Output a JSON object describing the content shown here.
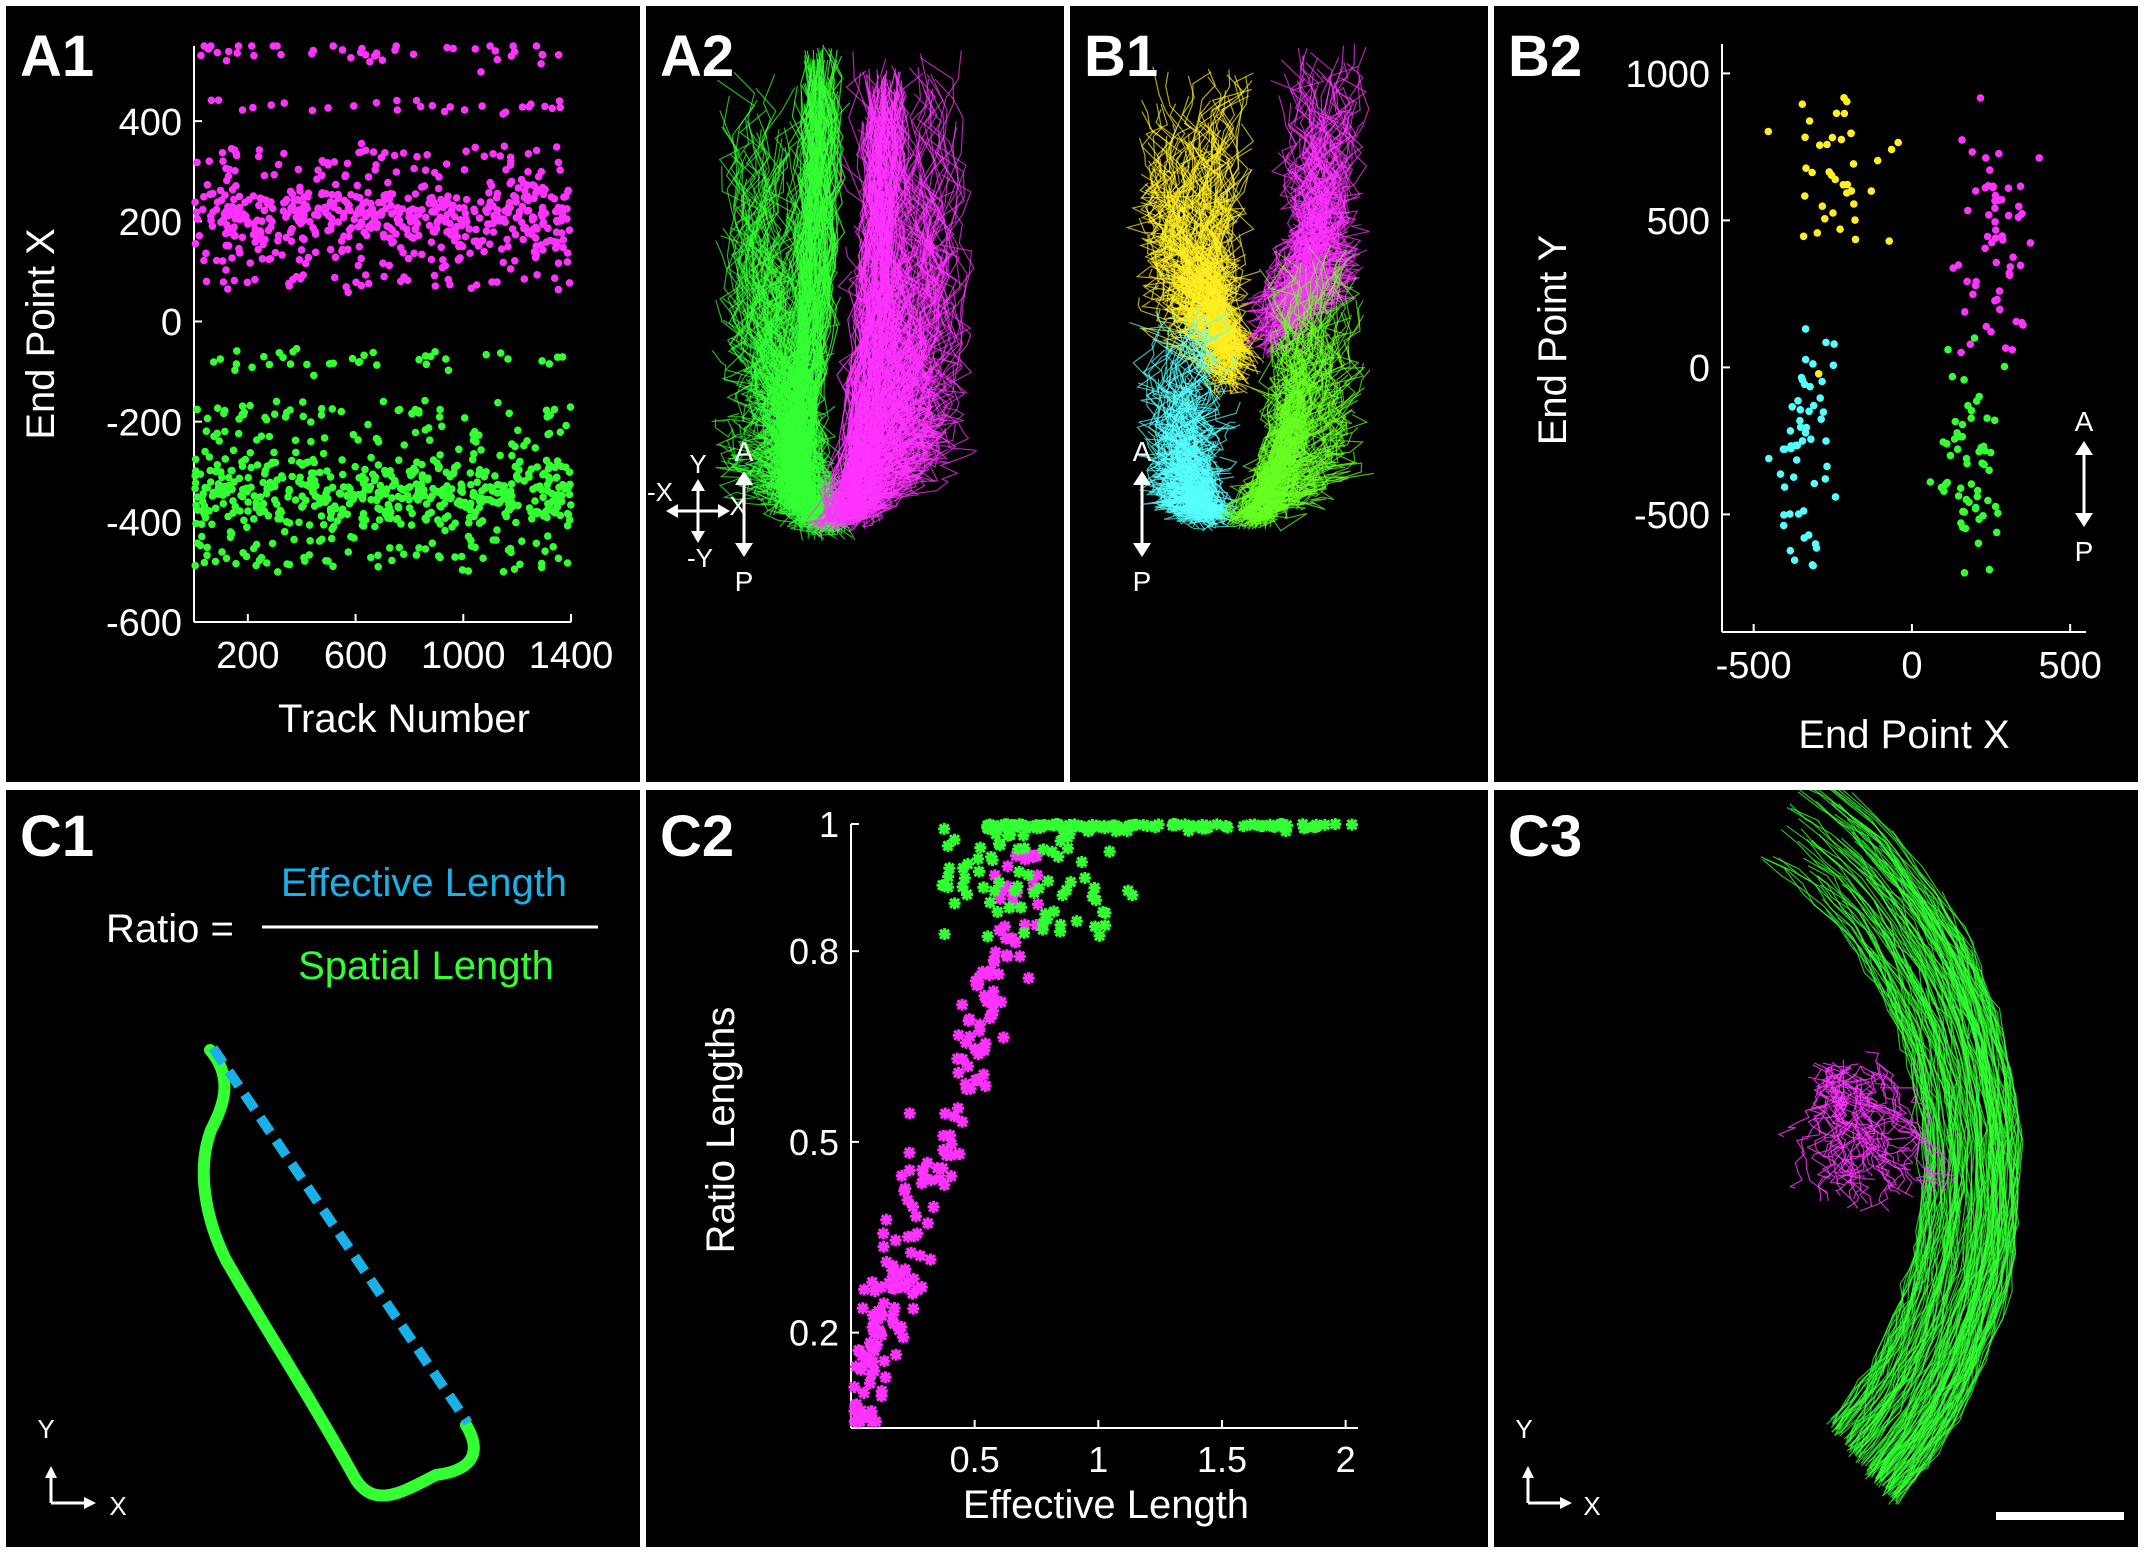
{
  "colors": {
    "magenta": "#ff33ff",
    "green": "#33ff33",
    "yellow": "#ffee22",
    "cyan": "#55ffff",
    "blue": "#1ab0e8",
    "white": "#ffffff",
    "background": "#000000"
  },
  "panels": {
    "a1": "A1",
    "a2": "A2",
    "b1": "B1",
    "b2": "B2",
    "c1": "C1",
    "c2": "C2",
    "c3": "C3"
  },
  "compass": {
    "a": "A",
    "p": "P"
  },
  "axes_icon": {
    "y": "Y",
    "x": "X",
    "neg_x": "-X",
    "neg_y": "-Y"
  },
  "c1_formula": {
    "lhs": "Ratio =",
    "numerator": "Effective Length",
    "denominator": "Spatial Length"
  },
  "chart_data": [
    {
      "id": "A1",
      "type": "scatter",
      "xlabel": "Track Number",
      "ylabel": "End Point X",
      "xlim": [
        0,
        1400
      ],
      "ylim": [
        -600,
        550
      ],
      "xticks": [
        200,
        600,
        1000,
        1400
      ],
      "yticks": [
        400,
        200,
        0,
        -200,
        -400,
        -600
      ],
      "series": [
        {
          "color": "magenta",
          "band": [
            50,
            550
          ],
          "center": 210,
          "count": 700
        },
        {
          "color": "green",
          "band": [
            -500,
            -50
          ],
          "center": -340,
          "count": 700
        }
      ]
    },
    {
      "id": "B2",
      "type": "scatter",
      "xlabel": "End Point X",
      "ylabel": "End Point Y",
      "xlim": [
        -600,
        550
      ],
      "ylim": [
        -900,
        1100
      ],
      "xticks": [
        -500,
        0,
        500
      ],
      "yticks": [
        1000,
        500,
        0,
        -500
      ],
      "series": [
        {
          "color": "yellow",
          "cluster": {
            "x": -250,
            "y": 650,
            "sx": 110,
            "sy": 200
          },
          "count": 40
        },
        {
          "color": "magenta",
          "cluster": {
            "x": 260,
            "y": 450,
            "sx": 80,
            "sy": 280
          },
          "count": 60
        },
        {
          "color": "cyan",
          "cluster": {
            "x": -330,
            "y": -300,
            "sx": 60,
            "sy": 250
          },
          "count": 55
        },
        {
          "color": "green",
          "cluster": {
            "x": 180,
            "y": -300,
            "sx": 70,
            "sy": 280
          },
          "count": 60
        }
      ]
    },
    {
      "id": "C2",
      "type": "scatter",
      "xlabel": "Effective Length",
      "ylabel": "Ratio Lengths",
      "xlim": [
        0,
        2.05
      ],
      "ylim": [
        0.05,
        1.0
      ],
      "xticks": [
        0.5,
        1,
        1.5,
        2
      ],
      "yticks": [
        1,
        0.8,
        0.5,
        0.2
      ],
      "series": [
        {
          "color": "magenta",
          "count": 210
        },
        {
          "color": "green",
          "count": 190
        }
      ]
    }
  ]
}
